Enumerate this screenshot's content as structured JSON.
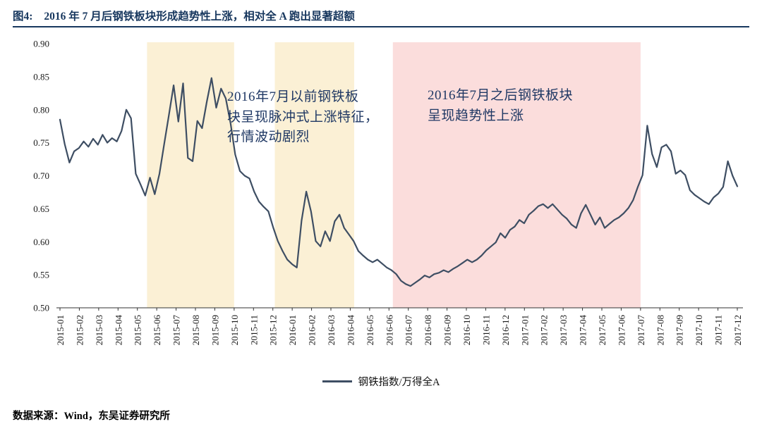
{
  "figure": {
    "caption_label": "图4:",
    "caption_text": "2016 年 7 月后钢铁板块形成趋势性上涨，相对全 A 跑出显著超额",
    "source": "数据来源：Wind，东吴证券研究所"
  },
  "annotations": {
    "left": "2016年7月以前钢铁板\n块呈现脉冲式上涨特征，\n行情波动剧烈",
    "right": "2016年7月之后钢铁板块\n呈现趋势性上涨"
  },
  "legend": {
    "label": "钢铁指数/万得全A",
    "color": "#3E4E63"
  },
  "colors": {
    "title_navy": "#17375E",
    "yellow_band": "#FBF0D5",
    "pink_band": "#FBDDDC",
    "line": "#3E4E63"
  },
  "chart_data": {
    "type": "line",
    "title": "",
    "xlabel": "",
    "ylabel": "",
    "grid": false,
    "legend_position": "bottom",
    "ylim": [
      0.5,
      0.9
    ],
    "y_ticks": [
      0.5,
      0.55,
      0.6,
      0.65,
      0.7,
      0.75,
      0.8,
      0.85,
      0.9
    ],
    "x_tick_labels": [
      "2015-01",
      "2015-02",
      "2015-03",
      "2015-04",
      "2015-05",
      "2015-06",
      "2015-07",
      "2015-08",
      "2015-09",
      "2015-10",
      "2015-11",
      "2015-12",
      "2016-01",
      "2016-02",
      "2016-03",
      "2016-04",
      "2016-05",
      "2016-06",
      "2016-07",
      "2016-08",
      "2016-09",
      "2016-10",
      "2016-11",
      "2016-12",
      "2017-01",
      "2017-02",
      "2017-03",
      "2017-04",
      "2017-05",
      "2017-06",
      "2017-07",
      "2017-08",
      "2017-09",
      "2017-10",
      "2017-11",
      "2017-12"
    ],
    "bands": [
      {
        "from_month": 4.5,
        "to_month": 9.0,
        "color": "#FBF0D5",
        "meaning": "脉冲式上涨阶段1"
      },
      {
        "from_month": 11.1,
        "to_month": 15.2,
        "color": "#FBF0D5",
        "meaning": "脉冲式上涨阶段2"
      },
      {
        "from_month": 17.2,
        "to_month": 30.0,
        "color": "#FBDDDC",
        "meaning": "趋势性上涨阶段"
      }
    ],
    "series": [
      {
        "name": "钢铁指数/万得全A",
        "color": "#3E4E63",
        "points_per_month": 4,
        "values": [
          0.785,
          0.748,
          0.72,
          0.737,
          0.742,
          0.752,
          0.744,
          0.756,
          0.747,
          0.762,
          0.75,
          0.757,
          0.752,
          0.768,
          0.8,
          0.787,
          0.703,
          0.687,
          0.67,
          0.697,
          0.672,
          0.703,
          0.748,
          0.792,
          0.837,
          0.782,
          0.84,
          0.727,
          0.722,
          0.783,
          0.772,
          0.812,
          0.848,
          0.803,
          0.832,
          0.817,
          0.78,
          0.732,
          0.707,
          0.7,
          0.696,
          0.676,
          0.661,
          0.653,
          0.646,
          0.622,
          0.601,
          0.586,
          0.573,
          0.566,
          0.561,
          0.632,
          0.676,
          0.646,
          0.601,
          0.593,
          0.616,
          0.601,
          0.631,
          0.641,
          0.621,
          0.611,
          0.601,
          0.586,
          0.579,
          0.573,
          0.569,
          0.573,
          0.567,
          0.561,
          0.557,
          0.551,
          0.541,
          0.536,
          0.533,
          0.538,
          0.543,
          0.549,
          0.546,
          0.551,
          0.553,
          0.557,
          0.554,
          0.559,
          0.563,
          0.568,
          0.573,
          0.569,
          0.573,
          0.579,
          0.587,
          0.593,
          0.599,
          0.613,
          0.606,
          0.618,
          0.623,
          0.633,
          0.628,
          0.641,
          0.647,
          0.654,
          0.657,
          0.651,
          0.657,
          0.649,
          0.641,
          0.635,
          0.626,
          0.621,
          0.643,
          0.656,
          0.641,
          0.626,
          0.637,
          0.621,
          0.627,
          0.633,
          0.637,
          0.643,
          0.651,
          0.663,
          0.683,
          0.701,
          0.776,
          0.733,
          0.713,
          0.743,
          0.747,
          0.737,
          0.703,
          0.708,
          0.701,
          0.678,
          0.671,
          0.666,
          0.661,
          0.657,
          0.667,
          0.673,
          0.683,
          0.722,
          0.7,
          0.684
        ]
      }
    ]
  }
}
